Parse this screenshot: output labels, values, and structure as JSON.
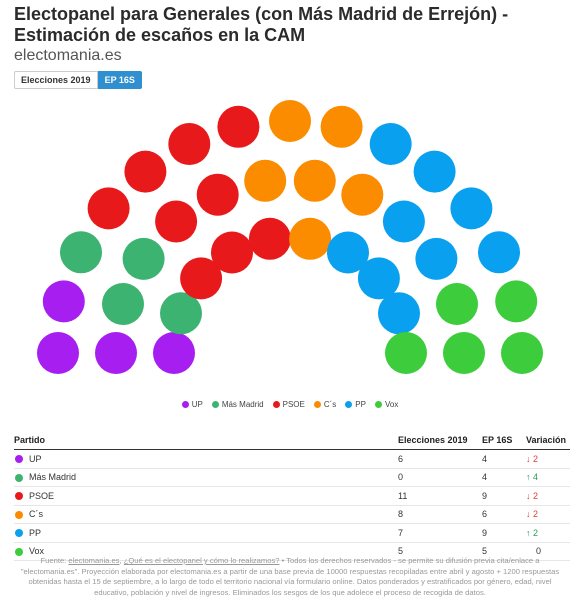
{
  "title": "Electopanel para Generales (con Más Madrid de Errejón) - Estimación de escaños en la CAM",
  "source": "electomania.es",
  "tabs": [
    {
      "label": "Elecciones 2019",
      "active": false
    },
    {
      "label": "EP 16S",
      "active": true
    }
  ],
  "chart_data": {
    "type": "hemicycle",
    "scenario": "EP 16S",
    "total_seats": 37,
    "parties": [
      {
        "name": "UP",
        "seats": 4,
        "color": "#a61ff0"
      },
      {
        "name": "Más Madrid",
        "seats": 4,
        "color": "#3cb371"
      },
      {
        "name": "PSOE",
        "seats": 9,
        "color": "#e8191b"
      },
      {
        "name": "C´s",
        "seats": 6,
        "color": "#fb8c00"
      },
      {
        "name": "PP",
        "seats": 9,
        "color": "#0aa0f0"
      },
      {
        "name": "Vox",
        "seats": 5,
        "color": "#3ccc3c"
      }
    ]
  },
  "table": {
    "headers": {
      "party": "Partido",
      "e2019": "Elecciones 2019",
      "ep": "EP 16S",
      "variation": "Variación"
    },
    "rows": [
      {
        "party": "UP",
        "color": "#a61ff0",
        "e2019": "6",
        "ep": "4",
        "arrow": "↓",
        "change": "2",
        "direction": "down"
      },
      {
        "party": "Más Madrid",
        "color": "#3cb371",
        "e2019": "0",
        "ep": "4",
        "arrow": "↑",
        "change": "4",
        "direction": "up"
      },
      {
        "party": "PSOE",
        "color": "#e8191b",
        "e2019": "11",
        "ep": "9",
        "arrow": "↓",
        "change": "2",
        "direction": "down"
      },
      {
        "party": "C´s",
        "color": "#fb8c00",
        "e2019": "8",
        "ep": "6",
        "arrow": "↓",
        "change": "2",
        "direction": "down"
      },
      {
        "party": "PP",
        "color": "#0aa0f0",
        "e2019": "7",
        "ep": "9",
        "arrow": "↑",
        "change": "2",
        "direction": "up"
      },
      {
        "party": "Vox",
        "color": "#3ccc3c",
        "e2019": "5",
        "ep": "5",
        "arrow": "",
        "change": "0",
        "direction": "none"
      }
    ]
  },
  "footer": {
    "prefix": "Fuente: ",
    "link1": "electomania.es",
    "sep": ", ",
    "link2": "¿Qué es el electopanel y cómo lo realizamos?",
    "text": " • Todos los derechos reservados - se permite su difusión previa cita/enlace a \"electomania.es\". Proyección elaborada por electomania.es a partir de una base previa de 10000 respuestas recopiladas entre abril y agosto + 1200 respuestas obtenidas hasta el 15 de septiembre, a lo largo de todo el territorio nacional vía formulario online. Datos ponderados y estratificados por género, edad, nivel educativo, población y nivel de ingresos. Eliminados los sesgos de los que adolece el proceso de recogida de datos."
  }
}
